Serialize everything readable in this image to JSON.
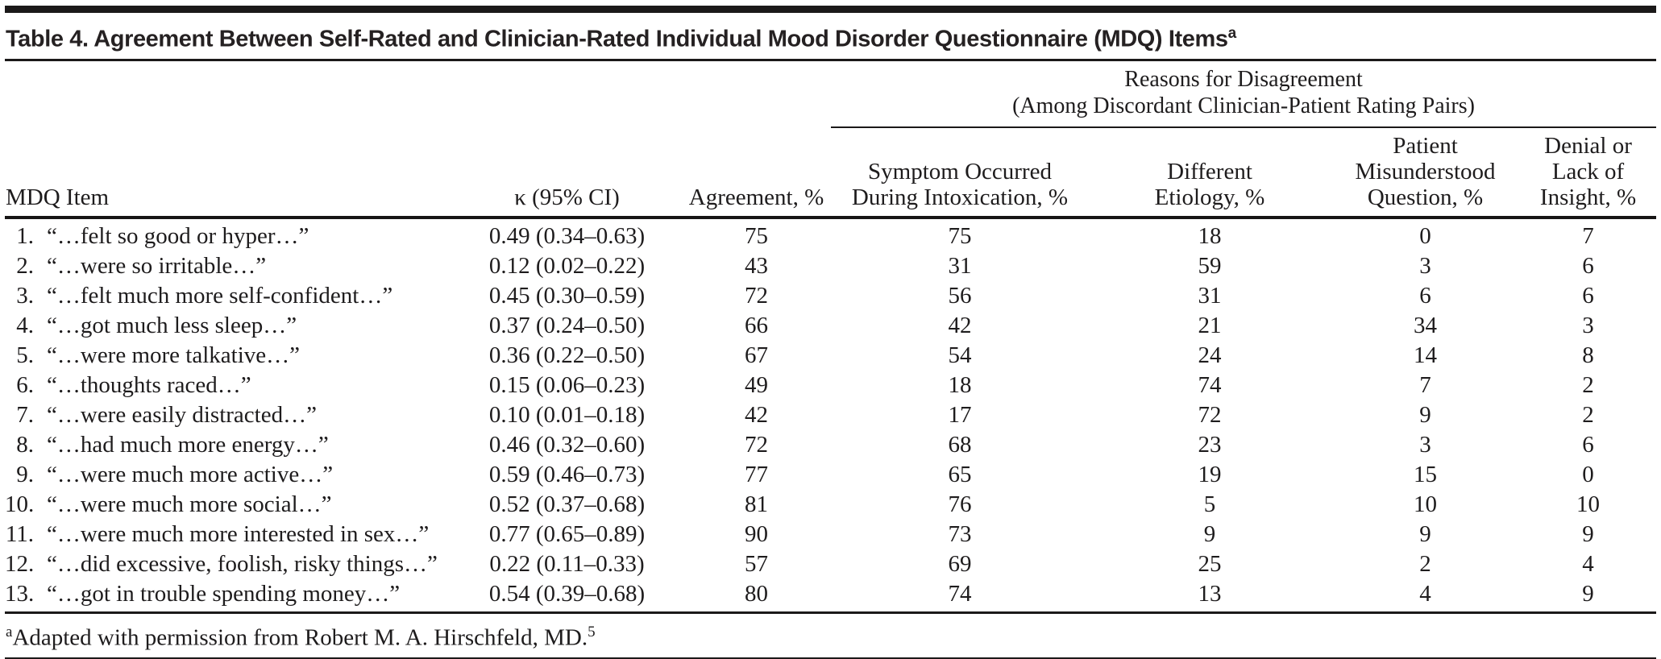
{
  "page": {
    "title": "Table 4. Agreement Between Self-Rated and Clinician-Rated Individual Mood Disorder Questionnaire (MDQ) Items",
    "title_marker": "a"
  },
  "header": {
    "group_line1": "Reasons for Disagreement",
    "group_line2": "(Among Discordant Clinician-Patient Rating Pairs)",
    "col_item": "MDQ Item",
    "col_kappa": "κ (95% CI)",
    "col_agreement": "Agreement, %",
    "col_intoxication": [
      "Symptom Occurred",
      "During Intoxication, %"
    ],
    "col_etiology": [
      "Different",
      "Etiology, %"
    ],
    "col_misunderstood": [
      "Patient",
      "Misunderstood",
      "Question, %"
    ],
    "col_denial": [
      "Denial or",
      "Lack of",
      "Insight, %"
    ]
  },
  "table": {
    "rows": [
      {
        "num": "1.",
        "item": "“…felt so good or hyper…”",
        "kappa": "0.49 (0.34–0.63)",
        "agreement": "75",
        "intoxication": "75",
        "etiology": "18",
        "misunderstood": "0",
        "denial": "7"
      },
      {
        "num": "2.",
        "item": "“…were so irritable…”",
        "kappa": "0.12 (0.02–0.22)",
        "agreement": "43",
        "intoxication": "31",
        "etiology": "59",
        "misunderstood": "3",
        "denial": "6"
      },
      {
        "num": "3.",
        "item": "“…felt much more self-confident…”",
        "kappa": "0.45 (0.30–0.59)",
        "agreement": "72",
        "intoxication": "56",
        "etiology": "31",
        "misunderstood": "6",
        "denial": "6"
      },
      {
        "num": "4.",
        "item": "“…got much less sleep…”",
        "kappa": "0.37 (0.24–0.50)",
        "agreement": "66",
        "intoxication": "42",
        "etiology": "21",
        "misunderstood": "34",
        "denial": "3"
      },
      {
        "num": "5.",
        "item": "“…were more talkative…”",
        "kappa": "0.36 (0.22–0.50)",
        "agreement": "67",
        "intoxication": "54",
        "etiology": "24",
        "misunderstood": "14",
        "denial": "8"
      },
      {
        "num": "6.",
        "item": "“…thoughts raced…”",
        "kappa": "0.15 (0.06–0.23)",
        "agreement": "49",
        "intoxication": "18",
        "etiology": "74",
        "misunderstood": "7",
        "denial": "2"
      },
      {
        "num": "7.",
        "item": "“…were easily distracted…”",
        "kappa": "0.10 (0.01–0.18)",
        "agreement": "42",
        "intoxication": "17",
        "etiology": "72",
        "misunderstood": "9",
        "denial": "2"
      },
      {
        "num": "8.",
        "item": "“…had much more energy…”",
        "kappa": "0.46 (0.32–0.60)",
        "agreement": "72",
        "intoxication": "68",
        "etiology": "23",
        "misunderstood": "3",
        "denial": "6"
      },
      {
        "num": "9.",
        "item": "“…were much more active…”",
        "kappa": "0.59 (0.46–0.73)",
        "agreement": "77",
        "intoxication": "65",
        "etiology": "19",
        "misunderstood": "15",
        "denial": "0"
      },
      {
        "num": "10.",
        "item": "“…were much more social…”",
        "kappa": "0.52 (0.37–0.68)",
        "agreement": "81",
        "intoxication": "76",
        "etiology": "5",
        "misunderstood": "10",
        "denial": "10"
      },
      {
        "num": "11.",
        "item": "“…were much more interested in sex…”",
        "kappa": "0.77 (0.65–0.89)",
        "agreement": "90",
        "intoxication": "73",
        "etiology": "9",
        "misunderstood": "9",
        "denial": "9"
      },
      {
        "num": "12.",
        "item": "“…did excessive, foolish, risky things…”",
        "kappa": "0.22 (0.11–0.33)",
        "agreement": "57",
        "intoxication": "69",
        "etiology": "25",
        "misunderstood": "2",
        "denial": "4"
      },
      {
        "num": "13.",
        "item": "“…got in trouble spending money…”",
        "kappa": "0.54 (0.39–0.68)",
        "agreement": "80",
        "intoxication": "74",
        "etiology": "13",
        "misunderstood": "4",
        "denial": "9"
      }
    ]
  },
  "footnote": {
    "marker": "a",
    "text": "Adapted with permission from Robert M. A. Hirschfeld, MD.",
    "ref": "5"
  }
}
